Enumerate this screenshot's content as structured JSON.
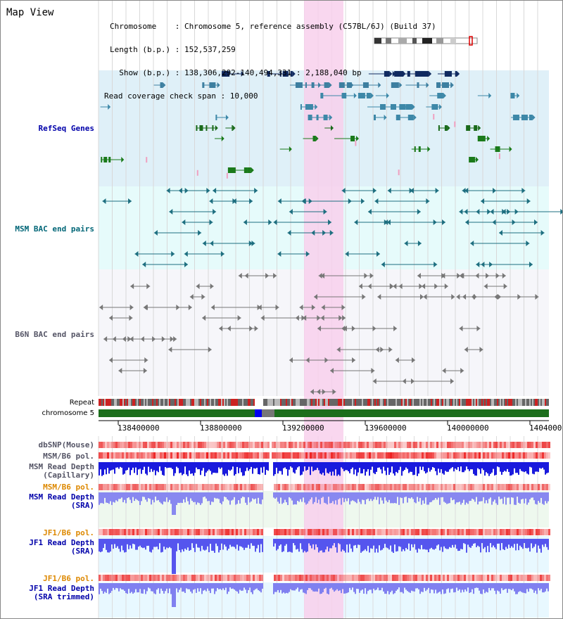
{
  "view_title": "Map View",
  "info": {
    "chromosome": "Chromosome    : Chromosome 5, reference assembly (C57BL/6J) (Build 37)",
    "length": "Length (b.p.) : 152,537,259",
    "show": "  Show (b.p.) : 138,306,292-140,494,331 : 2,188,040 bp",
    "read_coverage": "Read coverage check span : 10,000"
  },
  "tracks": {
    "refseq": "RefSeq Genes",
    "msm_bac": "MSM BAC end pairs",
    "b6n_bac": "B6N BAC end pairs",
    "repeat": "Repeat",
    "chromosome": "chromosome 5",
    "dbsnp": "dbSNP(Mouse)",
    "msm_b6_pol_1": "MSM/B6 pol.",
    "msm_read_depth_cap_1": "MSM Read Depth",
    "msm_read_depth_cap_2": "(Capillary)",
    "msm_b6_pol_2": "MSM/B6 pol.",
    "msm_read_depth_sra_1": "MSM Read Depth",
    "msm_read_depth_sra_2": "(SRA)",
    "jf1_b6_pol_1": "JF1/B6 pol.",
    "jf1_read_depth_1": "JF1 Read Depth",
    "jf1_read_depth_2": "(SRA)",
    "jf1_b6_pol_2": "JF1/B6 pol.",
    "jf1_read_depth_trim_1": "JF1 Read Depth",
    "jf1_read_depth_trim_2": "(SRA trimmed)"
  },
  "axis": {
    "ticks": [
      "138400000",
      "138800000",
      "139200000",
      "139600000",
      "140000000",
      "1404000"
    ]
  },
  "colors": {
    "refseq_bg": "#dff0f8",
    "msm_bg": "#e6fbfb",
    "b6n_bg": "#f6f6fa",
    "highlight": "#f8d0ec",
    "label_blue": "#0000aa",
    "label_teal": "#006677",
    "label_gray": "#555566",
    "label_orange": "#dd8800"
  }
}
